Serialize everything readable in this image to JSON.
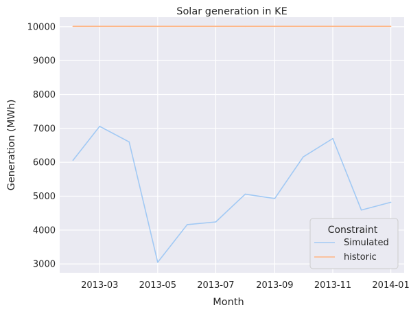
{
  "chart_data": {
    "type": "line",
    "title": "Solar generation in KE",
    "xlabel": "Month",
    "ylabel": "Generation (MWh)",
    "x_dates": [
      "2013-02-01",
      "2013-03-01",
      "2013-04-01",
      "2013-05-01",
      "2013-06-01",
      "2013-07-01",
      "2013-08-01",
      "2013-09-01",
      "2013-10-01",
      "2013-11-01",
      "2013-12-01",
      "2014-01-01"
    ],
    "x_ticks": [
      "2013-03",
      "2013-05",
      "2013-07",
      "2013-09",
      "2013-11",
      "2014-01"
    ],
    "y_ticks": [
      3000,
      4000,
      5000,
      6000,
      7000,
      8000,
      9000,
      10000
    ],
    "ylim": [
      2740,
      10280
    ],
    "xlim": [
      "2013-01-18",
      "2014-01-15"
    ],
    "grid": true,
    "legend_position": "bottom-right",
    "legend_title": "Constraint",
    "series": [
      {
        "name": "Simulated",
        "color": "#a1c9f4",
        "values": [
          6060,
          7060,
          6600,
          3050,
          4160,
          4240,
          5060,
          4930,
          6160,
          6700,
          4590,
          4820
        ]
      },
      {
        "name": "historic",
        "color": "#ffb482",
        "values": [
          10010,
          10010,
          10010,
          10010,
          10010,
          10010,
          10010,
          10010,
          10010,
          10010,
          10010,
          10010
        ]
      }
    ]
  }
}
